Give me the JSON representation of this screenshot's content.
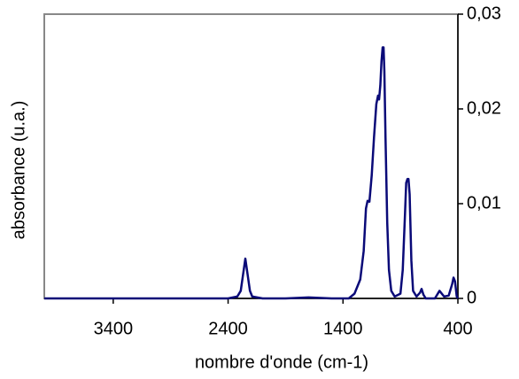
{
  "chart_data": {
    "type": "line",
    "xlabel": "nombre d'onde (cm-1)",
    "ylabel": "absorbance (u.a.)",
    "x": [
      4000,
      3800,
      3600,
      3400,
      3000,
      2600,
      2400,
      2320,
      2290,
      2270,
      2250,
      2230,
      2210,
      2190,
      2100,
      1900,
      1700,
      1500,
      1350,
      1300,
      1250,
      1220,
      1200,
      1186,
      1170,
      1150,
      1130,
      1110,
      1095,
      1086,
      1075,
      1065,
      1055,
      1047,
      1040,
      1030,
      1015,
      1000,
      980,
      950,
      900,
      880,
      860,
      850,
      839,
      830,
      820,
      805,
      790,
      760,
      730,
      716,
      700,
      680,
      600,
      560,
      520,
      480,
      450,
      438,
      425,
      410,
      400
    ],
    "series": [
      {
        "color": "#0a0a78",
        "values": [
          0,
          0,
          0,
          0,
          0,
          0,
          0,
          0.0002,
          0.0008,
          0.0025,
          0.0042,
          0.0025,
          0.0008,
          0.0002,
          0,
          0,
          0.0001,
          0,
          0,
          0.0005,
          0.002,
          0.005,
          0.0095,
          0.0103,
          0.0102,
          0.013,
          0.017,
          0.0205,
          0.0214,
          0.021,
          0.0225,
          0.025,
          0.0265,
          0.0265,
          0.024,
          0.017,
          0.008,
          0.003,
          0.0008,
          0.0002,
          0.0005,
          0.003,
          0.009,
          0.0122,
          0.0126,
          0.0126,
          0.011,
          0.004,
          0.0008,
          0.0002,
          0.0006,
          0.001,
          0.0004,
          0,
          0,
          0.0008,
          0.0002,
          0.0003,
          0.0015,
          0.0022,
          0.0018,
          0.0002,
          0
        ]
      }
    ],
    "xlim": [
      4000,
      400
    ],
    "xticks": [
      3400,
      2400,
      1400,
      400
    ],
    "ylim": [
      0,
      0.03
    ],
    "yticks": [
      0,
      {
        "value": 0.01,
        "label": "0,01"
      },
      {
        "value": 0.02,
        "label": "0,02"
      },
      {
        "value": 0.03,
        "label": "0,03"
      }
    ],
    "y_axis_side": "right"
  }
}
